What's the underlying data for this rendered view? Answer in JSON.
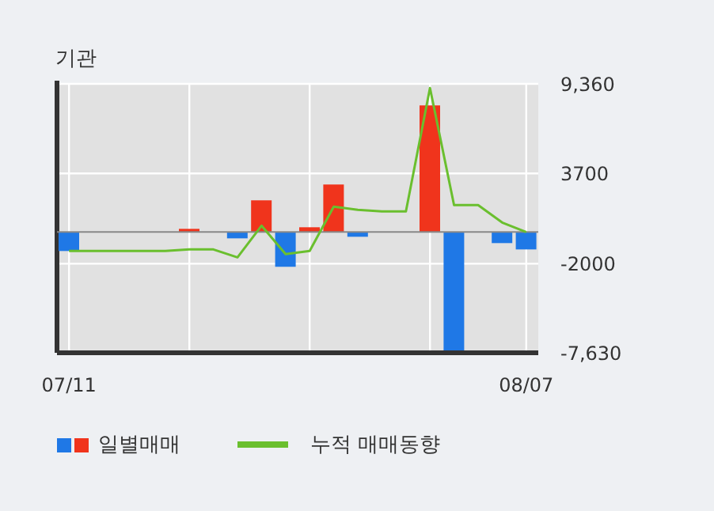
{
  "chart_data": {
    "type": "bar",
    "title": "기관",
    "categories": [
      "07/11",
      null,
      null,
      null,
      null,
      null,
      null,
      null,
      null,
      null,
      null,
      null,
      null,
      null,
      null,
      null,
      null,
      null,
      null,
      "08/07"
    ],
    "series": [
      {
        "name": "일별매매",
        "colors": [
          "#1f78e6",
          "#1f78e6",
          "#1f78e6",
          "#1f78e6",
          "#1f78e6",
          "#f0341c",
          "#1f78e6",
          "#1f78e6",
          "#f0341c",
          "#1f78e6",
          "#f0341c",
          "#f0341c",
          "#1f78e6",
          "#1f78e6",
          "#1f78e6",
          "#f0341c",
          "#1f78e6",
          "#1f78e6",
          "#1f78e6",
          "#1f78e6"
        ],
        "values": [
          -1200,
          null,
          null,
          null,
          null,
          200,
          null,
          -400,
          2000,
          -2200,
          300,
          3000,
          -300,
          null,
          null,
          8000,
          -7600,
          null,
          -700,
          -1100
        ]
      },
      {
        "name": "누적 매매동향",
        "type": "line",
        "color": "#6abf2e",
        "values": [
          -1200,
          -1200,
          -1200,
          -1200,
          -1200,
          -1100,
          -1100,
          -1600,
          400,
          -1400,
          -1200,
          1600,
          1400,
          1300,
          1300,
          9100,
          1700,
          1700,
          600,
          0
        ]
      }
    ],
    "ylim": [
      -7630,
      9360
    ],
    "yticks": [
      {
        "value": 9360,
        "label": "9,360"
      },
      3700,
      -2000,
      {
        "value": -7630,
        "label": "-7,630"
      }
    ],
    "ref_lines": [
      {
        "axis": "y",
        "value": 0,
        "color": "#888888"
      }
    ],
    "grid": true,
    "legend": "bottom left"
  }
}
